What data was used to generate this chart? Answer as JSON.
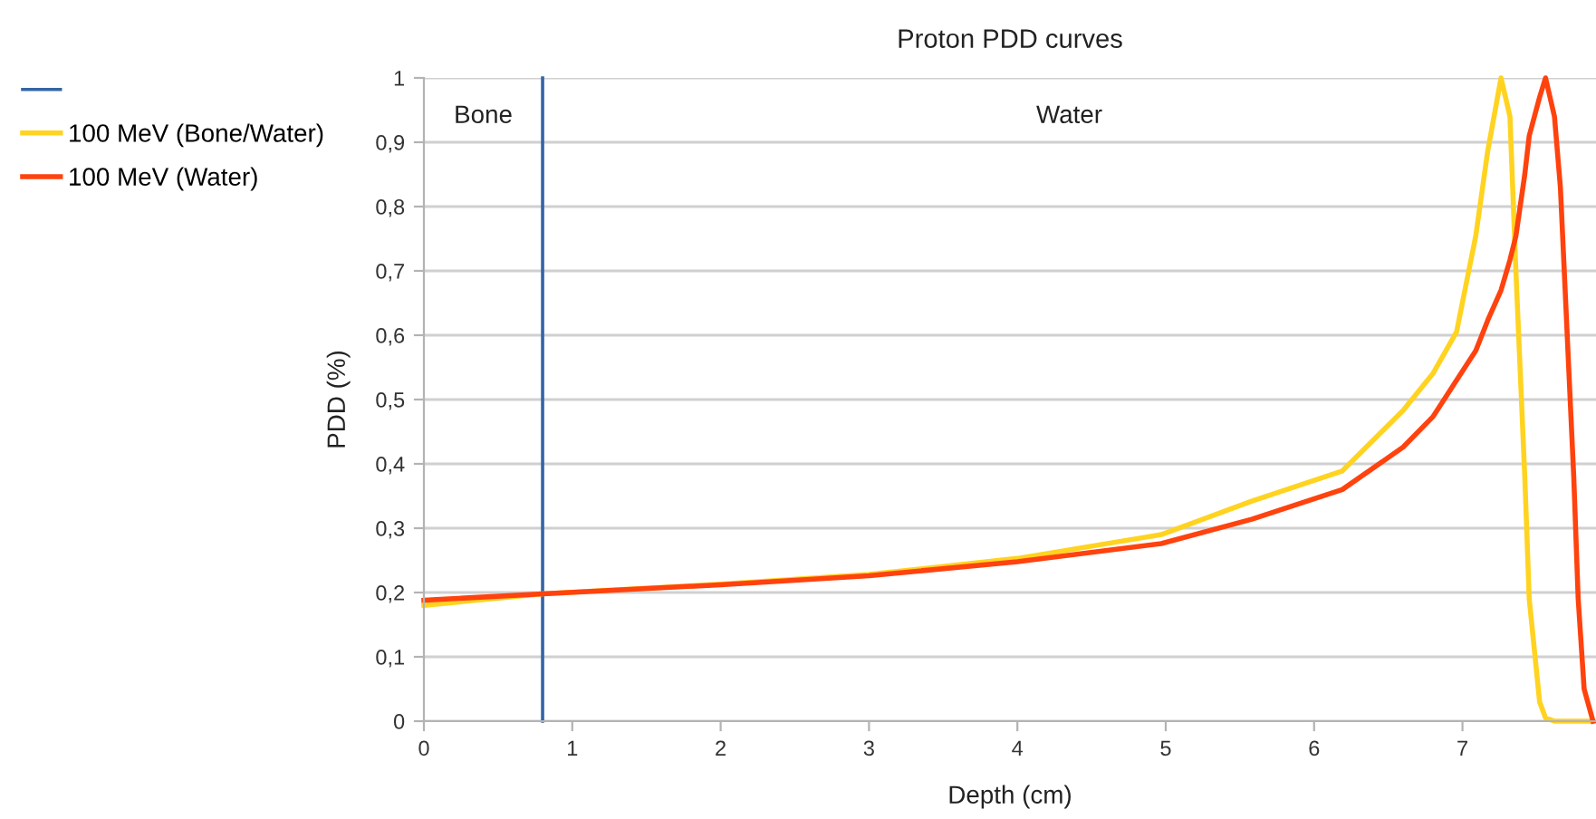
{
  "chart_data": {
    "type": "line",
    "title": "Proton PDD curves",
    "xlabel": "Depth (cm)",
    "ylabel": "PDD (%)",
    "xlim": [
      0,
      7.9
    ],
    "xticks": [
      0,
      1,
      2,
      3,
      4,
      5,
      6,
      7
    ],
    "ylim": [
      0,
      1
    ],
    "yticks": [
      {
        "value": 0,
        "label": "0"
      },
      {
        "value": 0.1,
        "label": "0,1"
      },
      {
        "value": 0.2,
        "label": "0,2"
      },
      {
        "value": 0.3,
        "label": "0,3"
      },
      {
        "value": 0.4,
        "label": "0,4"
      },
      {
        "value": 0.5,
        "label": "0,5"
      },
      {
        "value": 0.6,
        "label": "0,6"
      },
      {
        "value": 0.7,
        "label": "0,7"
      },
      {
        "value": 0.8,
        "label": "0,8"
      },
      {
        "value": 0.9,
        "label": "0,9"
      },
      {
        "value": 1,
        "label": "1"
      }
    ],
    "grid": "y",
    "legend": "left",
    "marker": "none",
    "line_style": "solid",
    "annotations": [
      "Bone",
      "Water"
    ],
    "series": [
      {
        "color": "#3465a4",
        "x": [
          0.8,
          0.8
        ],
        "values": [
          0,
          1
        ]
      },
      {
        "name": "100 MeV (Bone/Water)",
        "color": "#ffd320",
        "x": [
          0,
          0.8,
          2,
          3,
          4,
          4.97,
          5.58,
          6.19,
          6.6,
          6.8,
          6.96,
          7.09,
          7.17,
          7.26,
          7.32,
          7.36,
          7.42,
          7.45,
          7.52,
          7.56,
          7.62,
          7.7,
          7.88
        ],
        "values": [
          0.18,
          0.198,
          0.213,
          0.228,
          0.253,
          0.29,
          0.342,
          0.389,
          0.483,
          0.54,
          0.605,
          0.755,
          0.886,
          1.0,
          0.94,
          0.7,
          0.38,
          0.19,
          0.03,
          0.005,
          0,
          0,
          0
        ]
      },
      {
        "name": "100 MeV (Water)",
        "color": "#ff420e",
        "x": [
          0,
          0.8,
          2,
          3,
          4,
          4.97,
          5.58,
          6.19,
          6.6,
          6.8,
          6.96,
          7.09,
          7.17,
          7.26,
          7.32,
          7.36,
          7.42,
          7.45,
          7.52,
          7.56,
          7.62,
          7.66,
          7.75,
          7.78,
          7.82,
          7.88
        ],
        "values": [
          0.188,
          0.198,
          0.212,
          0.226,
          0.248,
          0.276,
          0.314,
          0.36,
          0.426,
          0.473,
          0.53,
          0.576,
          0.623,
          0.67,
          0.717,
          0.754,
          0.85,
          0.91,
          0.97,
          1.0,
          0.94,
          0.83,
          0.38,
          0.19,
          0.05,
          0
        ]
      }
    ]
  }
}
